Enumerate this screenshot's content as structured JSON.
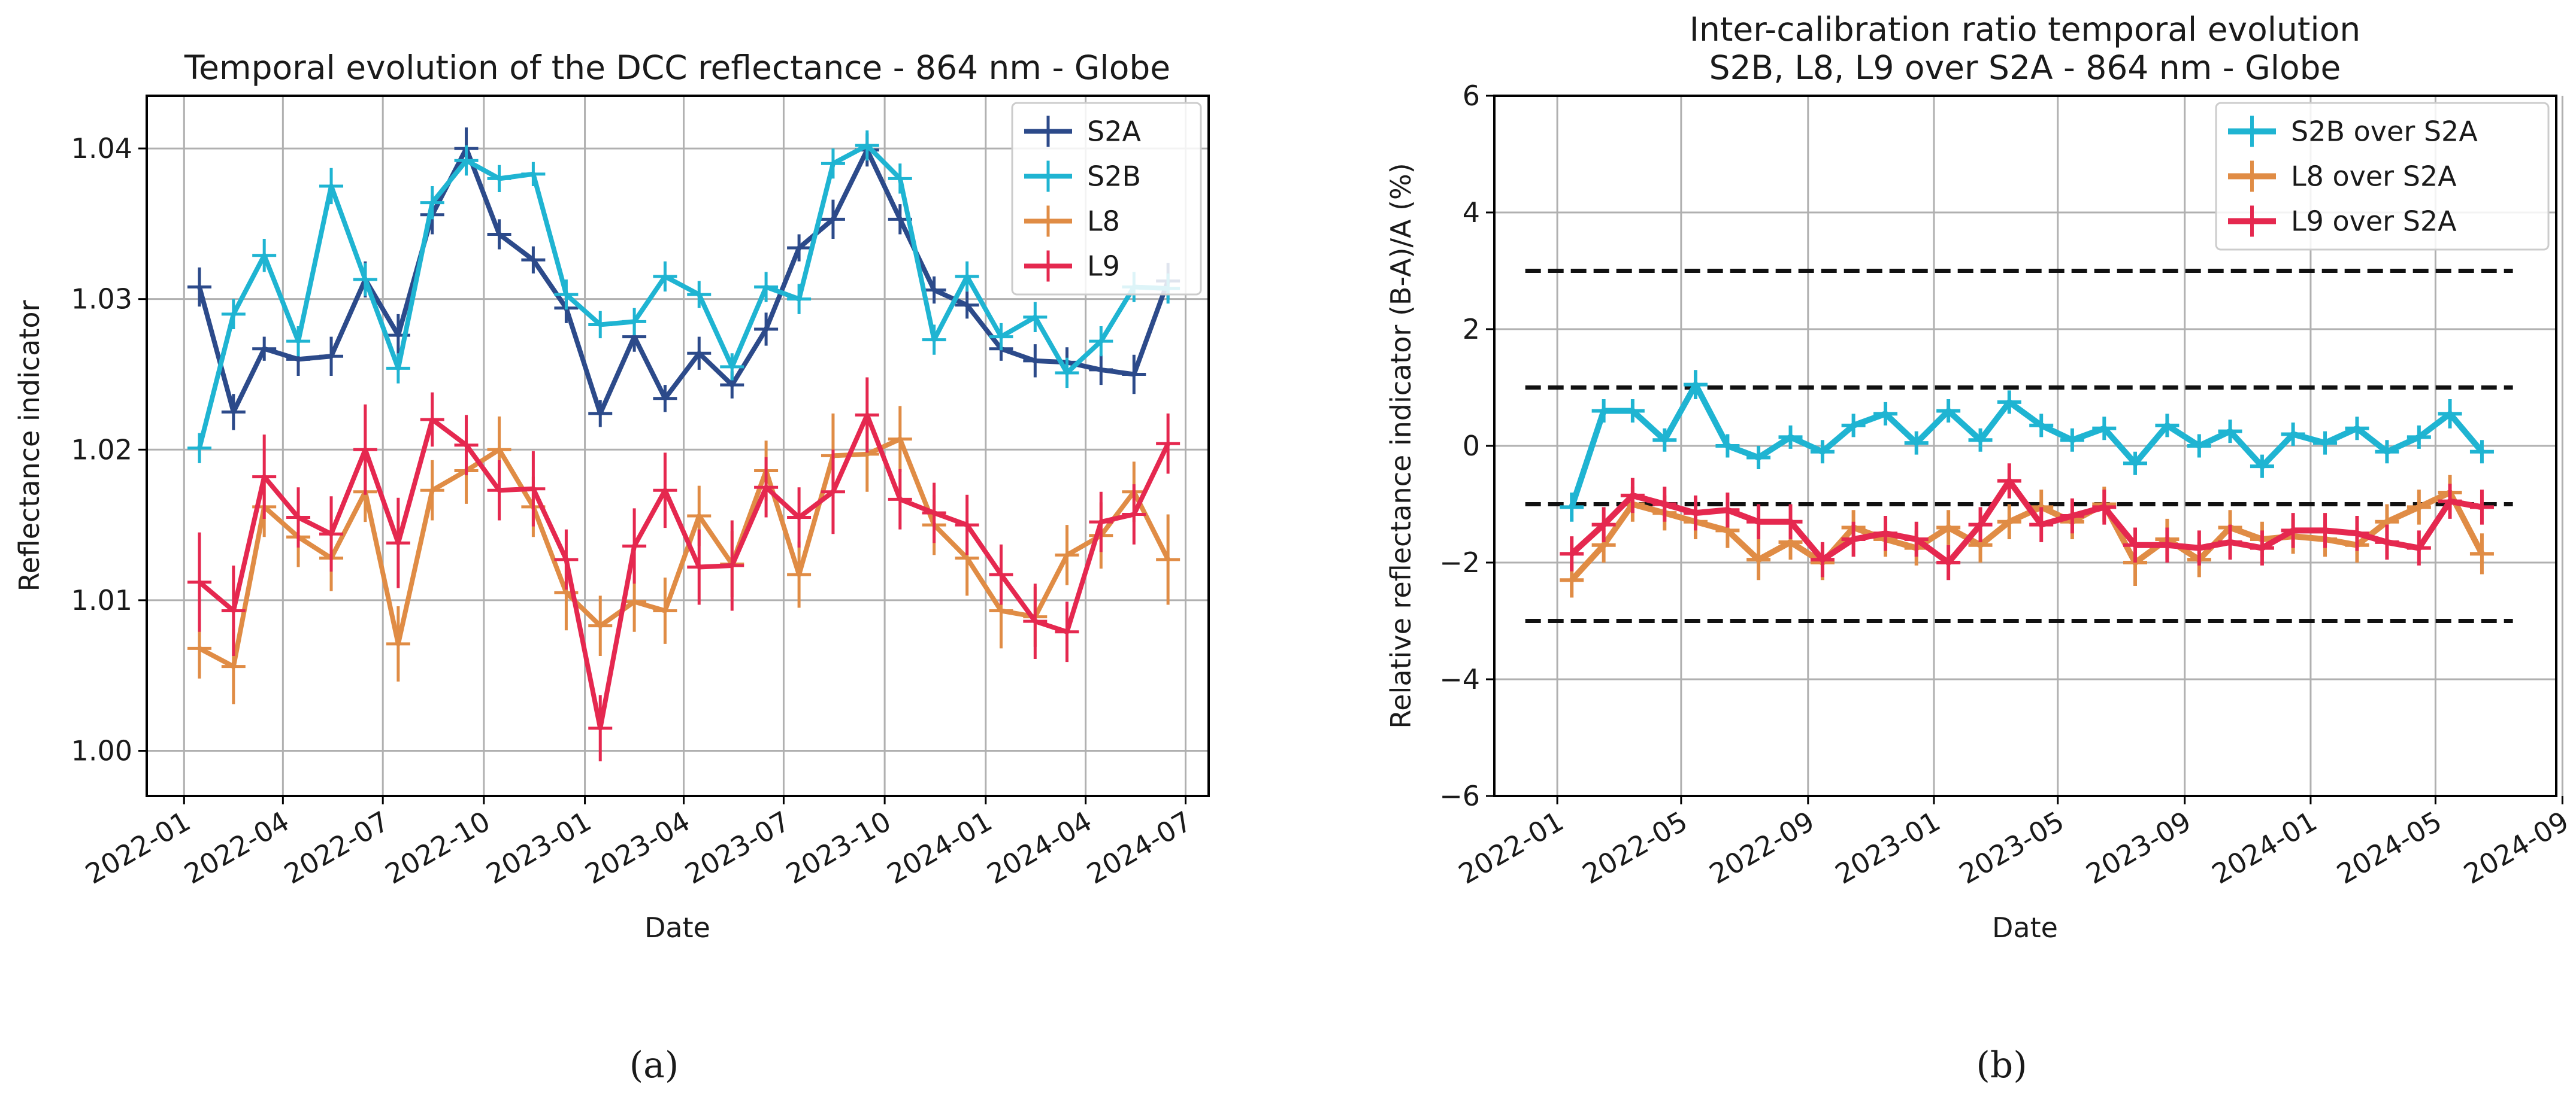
{
  "chart_data": [
    {
      "type": "line",
      "title": "Temporal evolution of the DCC reflectance - 864 nm - Globe",
      "xlabel": "Date",
      "ylabel": "Reflectance indicator",
      "xlim": [
        "2021-11-28",
        "2024-07-22"
      ],
      "ylim": [
        0.997,
        1.0435
      ],
      "xticks": [
        "2022-01",
        "2022-04",
        "2022-07",
        "2022-10",
        "2023-01",
        "2023-04",
        "2023-07",
        "2023-10",
        "2024-01",
        "2024-04",
        "2024-07"
      ],
      "yticks": [
        1.0,
        1.01,
        1.02,
        1.03,
        1.04
      ],
      "ytick_labels": [
        "1.00",
        "1.01",
        "1.02",
        "1.03",
        "1.04"
      ],
      "grid": true,
      "legend_position": "top-right",
      "series": [
        {
          "name": "S2A",
          "color": "#2c4a8a",
          "x": [
            "2022-01",
            "2022-02",
            "2022-03",
            "2022-04",
            "2022-05",
            "2022-06",
            "2022-07",
            "2022-08",
            "2022-09",
            "2022-10",
            "2022-11",
            "2022-12",
            "2023-01",
            "2023-02",
            "2023-03",
            "2023-04",
            "2023-05",
            "2023-06",
            "2023-07",
            "2023-08",
            "2023-09",
            "2023-10",
            "2023-11",
            "2023-12",
            "2024-01",
            "2024-02",
            "2024-03",
            "2024-04",
            "2024-05",
            "2024-06"
          ],
          "values": [
            1.0308,
            1.0225,
            1.0267,
            1.026,
            1.0262,
            1.0313,
            1.0276,
            1.0356,
            1.04,
            1.0343,
            1.0326,
            1.0294,
            1.0224,
            1.0275,
            1.0234,
            1.0264,
            1.0243,
            1.028,
            1.0334,
            1.0353,
            1.0399,
            1.0353,
            1.0306,
            1.0296,
            1.0267,
            1.0259,
            1.0258,
            1.0253,
            1.025,
            1.0312
          ],
          "errors": [
            0.0013,
            0.0012,
            0.0008,
            0.0011,
            0.0013,
            0.0012,
            0.0014,
            0.0013,
            0.0014,
            0.001,
            0.0009,
            0.001,
            0.0009,
            0.001,
            0.0009,
            0.0011,
            0.0009,
            0.0011,
            0.0009,
            0.0013,
            0.0011,
            0.001,
            0.0009,
            0.0009,
            0.0008,
            0.0011,
            0.001,
            0.001,
            0.0013,
            0.0012
          ]
        },
        {
          "name": "S2B",
          "color": "#1fb4d2",
          "x": [
            "2022-01",
            "2022-02",
            "2022-03",
            "2022-04",
            "2022-05",
            "2022-06",
            "2022-07",
            "2022-08",
            "2022-09",
            "2022-10",
            "2022-11",
            "2022-12",
            "2023-01",
            "2023-02",
            "2023-03",
            "2023-04",
            "2023-05",
            "2023-06",
            "2023-07",
            "2023-08",
            "2023-09",
            "2023-10",
            "2023-11",
            "2023-12",
            "2024-01",
            "2024-02",
            "2024-03",
            "2024-04",
            "2024-05",
            "2024-06"
          ],
          "values": [
            1.0201,
            1.029,
            1.0329,
            1.0272,
            1.0375,
            1.0313,
            1.0254,
            1.0364,
            1.0392,
            1.038,
            1.0383,
            1.0303,
            1.0283,
            1.0285,
            1.0315,
            1.0303,
            1.0255,
            1.0308,
            1.03,
            1.039,
            1.0402,
            1.038,
            1.0273,
            1.0315,
            1.0275,
            1.0288,
            1.0251,
            1.0272,
            1.0308,
            1.0307
          ],
          "errors": [
            0.001,
            0.001,
            0.0011,
            0.001,
            0.0012,
            0.0011,
            0.001,
            0.0011,
            0.001,
            0.0009,
            0.0008,
            0.001,
            0.0009,
            0.0009,
            0.001,
            0.0009,
            0.0009,
            0.001,
            0.001,
            0.001,
            0.001,
            0.001,
            0.001,
            0.001,
            0.0009,
            0.001,
            0.001,
            0.001,
            0.001,
            0.001
          ]
        },
        {
          "name": "L8",
          "color": "#e08c45",
          "x": [
            "2022-01",
            "2022-02",
            "2022-03",
            "2022-04",
            "2022-05",
            "2022-06",
            "2022-07",
            "2022-08",
            "2022-09",
            "2022-10",
            "2022-11",
            "2022-12",
            "2023-01",
            "2023-02",
            "2023-03",
            "2023-04",
            "2023-05",
            "2023-06",
            "2023-07",
            "2023-08",
            "2023-09",
            "2023-10",
            "2023-11",
            "2023-12",
            "2024-01",
            "2024-02",
            "2024-03",
            "2024-04",
            "2024-05",
            "2024-06"
          ],
          "values": [
            1.0068,
            1.0056,
            1.0162,
            1.0142,
            1.0128,
            1.0172,
            1.0071,
            1.0173,
            1.0186,
            1.02,
            1.0162,
            1.0105,
            1.0083,
            1.0099,
            1.0093,
            1.0156,
            1.0124,
            1.0186,
            1.0117,
            1.0196,
            1.0197,
            1.0207,
            1.015,
            1.0128,
            1.0093,
            1.0089,
            1.013,
            1.0143,
            1.0172,
            1.0127
          ],
          "errors": [
            0.002,
            0.0025,
            0.002,
            0.002,
            0.0022,
            0.002,
            0.0025,
            0.002,
            0.0022,
            0.0022,
            0.002,
            0.0025,
            0.002,
            0.002,
            0.0022,
            0.002,
            0.0022,
            0.002,
            0.0022,
            0.0028,
            0.0025,
            0.0022,
            0.002,
            0.0025,
            0.0025,
            0.002,
            0.002,
            0.0022,
            0.002,
            0.003
          ]
        },
        {
          "name": "L9",
          "color": "#e5284f",
          "x": [
            "2022-01",
            "2022-02",
            "2022-03",
            "2022-04",
            "2022-05",
            "2022-06",
            "2022-07",
            "2022-08",
            "2022-09",
            "2022-10",
            "2022-11",
            "2022-12",
            "2023-01",
            "2023-02",
            "2023-03",
            "2023-04",
            "2023-05",
            "2023-06",
            "2023-07",
            "2023-08",
            "2023-09",
            "2023-10",
            "2023-11",
            "2023-12",
            "2024-01",
            "2024-02",
            "2024-03",
            "2024-04",
            "2024-05",
            "2024-06"
          ],
          "values": [
            1.0112,
            1.0093,
            1.0182,
            1.0155,
            1.0144,
            1.02,
            1.0138,
            1.022,
            1.0203,
            1.0173,
            1.0174,
            1.0127,
            1.0015,
            1.0136,
            1.0173,
            1.0122,
            1.0123,
            1.0175,
            1.0155,
            1.0172,
            1.0223,
            1.0167,
            1.0158,
            1.015,
            1.0117,
            1.0086,
            1.0079,
            1.0152,
            1.0157,
            1.0204
          ],
          "errors": [
            0.0033,
            0.003,
            0.0028,
            0.002,
            0.0025,
            0.003,
            0.003,
            0.0018,
            0.002,
            0.002,
            0.0025,
            0.002,
            0.0022,
            0.0025,
            0.0025,
            0.0025,
            0.003,
            0.002,
            0.002,
            0.0028,
            0.0025,
            0.002,
            0.002,
            0.002,
            0.002,
            0.0025,
            0.002,
            0.002,
            0.002,
            0.002
          ]
        }
      ],
      "caption": "(a)"
    },
    {
      "type": "line",
      "title": "Inter-calibration ratio temporal evolution\nS2B, L8, L9 over S2A - 864 nm - Globe",
      "xlabel": "Date",
      "ylabel": "Relative reflectance indicator (B-A)/A (%)",
      "xlim": [
        "2021-11-01",
        "2024-08-26"
      ],
      "ylim": [
        -6,
        6
      ],
      "xticks": [
        "2022-01",
        "2022-05",
        "2022-09",
        "2023-01",
        "2023-05",
        "2023-09",
        "2024-01",
        "2024-05",
        "2024-09"
      ],
      "yticks": [
        -6,
        -4,
        -2,
        0,
        2,
        4,
        6
      ],
      "ytick_labels": [
        "−6",
        "−4",
        "−2",
        "0",
        "2",
        "4",
        "6"
      ],
      "grid": true,
      "legend_position": "top-right",
      "reference_lines": [
        3,
        1,
        -1,
        -3
      ],
      "reference_line_xrange": [
        "2021-12-01",
        "2024-07-15"
      ],
      "series": [
        {
          "name": "S2B over S2A",
          "color": "#1fb4d2",
          "x": [
            "2022-01",
            "2022-02",
            "2022-03",
            "2022-04",
            "2022-05",
            "2022-06",
            "2022-07",
            "2022-08",
            "2022-09",
            "2022-10",
            "2022-11",
            "2022-12",
            "2023-01",
            "2023-02",
            "2023-03",
            "2023-04",
            "2023-05",
            "2023-06",
            "2023-07",
            "2023-08",
            "2023-09",
            "2023-10",
            "2023-11",
            "2023-12",
            "2024-01",
            "2024-02",
            "2024-03",
            "2024-04",
            "2024-05",
            "2024-06"
          ],
          "values": [
            -1.05,
            0.6,
            0.6,
            0.1,
            1.05,
            0.0,
            -0.2,
            0.15,
            -0.1,
            0.35,
            0.55,
            0.05,
            0.6,
            0.1,
            0.75,
            0.35,
            0.1,
            0.3,
            -0.3,
            0.35,
            0.0,
            0.25,
            -0.35,
            0.2,
            0.05,
            0.3,
            -0.1,
            0.15,
            0.55,
            -0.1
          ],
          "errors": [
            0.25,
            0.2,
            0.2,
            0.2,
            0.25,
            0.2,
            0.2,
            0.2,
            0.2,
            0.2,
            0.2,
            0.2,
            0.2,
            0.2,
            0.2,
            0.2,
            0.2,
            0.2,
            0.2,
            0.2,
            0.2,
            0.2,
            0.2,
            0.2,
            0.2,
            0.2,
            0.2,
            0.2,
            0.25,
            0.2
          ]
        },
        {
          "name": "L8 over S2A",
          "color": "#e08c45",
          "x": [
            "2022-01",
            "2022-02",
            "2022-03",
            "2022-04",
            "2022-05",
            "2022-06",
            "2022-07",
            "2022-08",
            "2022-09",
            "2022-10",
            "2022-11",
            "2022-12",
            "2023-01",
            "2023-02",
            "2023-03",
            "2023-04",
            "2023-05",
            "2023-06",
            "2023-07",
            "2023-08",
            "2023-09",
            "2023-10",
            "2023-11",
            "2023-12",
            "2024-01",
            "2024-02",
            "2024-03",
            "2024-04",
            "2024-05",
            "2024-06"
          ],
          "values": [
            -2.3,
            -1.7,
            -1.0,
            -1.15,
            -1.3,
            -1.45,
            -1.95,
            -1.65,
            -2.0,
            -1.4,
            -1.6,
            -1.75,
            -1.4,
            -1.7,
            -1.3,
            -1.05,
            -1.3,
            -1.0,
            -2.0,
            -1.6,
            -1.95,
            -1.4,
            -1.6,
            -1.55,
            -1.6,
            -1.7,
            -1.3,
            -1.05,
            -0.8,
            -1.85
          ],
          "errors": [
            0.3,
            0.3,
            0.3,
            0.3,
            0.3,
            0.3,
            0.35,
            0.3,
            0.3,
            0.3,
            0.3,
            0.3,
            0.3,
            0.3,
            0.3,
            0.3,
            0.3,
            0.3,
            0.4,
            0.35,
            0.3,
            0.3,
            0.3,
            0.3,
            0.3,
            0.3,
            0.3,
            0.3,
            0.3,
            0.35
          ]
        },
        {
          "name": "L9 over S2A",
          "color": "#e5284f",
          "x": [
            "2022-01",
            "2022-02",
            "2022-03",
            "2022-04",
            "2022-05",
            "2022-06",
            "2022-07",
            "2022-08",
            "2022-09",
            "2022-10",
            "2022-11",
            "2022-12",
            "2023-01",
            "2023-02",
            "2023-03",
            "2023-04",
            "2023-05",
            "2023-06",
            "2023-07",
            "2023-08",
            "2023-09",
            "2023-10",
            "2023-11",
            "2023-12",
            "2024-01",
            "2024-02",
            "2024-03",
            "2024-04",
            "2024-05",
            "2024-06"
          ],
          "values": [
            -1.85,
            -1.35,
            -0.85,
            -1.0,
            -1.15,
            -1.1,
            -1.3,
            -1.3,
            -1.95,
            -1.6,
            -1.5,
            -1.6,
            -2.0,
            -1.35,
            -0.6,
            -1.35,
            -1.2,
            -1.05,
            -1.7,
            -1.7,
            -1.75,
            -1.65,
            -1.75,
            -1.45,
            -1.45,
            -1.5,
            -1.65,
            -1.75,
            -0.95,
            -1.05
          ],
          "errors": [
            0.3,
            0.3,
            0.3,
            0.3,
            0.3,
            0.3,
            0.3,
            0.3,
            0.3,
            0.3,
            0.3,
            0.3,
            0.3,
            0.3,
            0.3,
            0.3,
            0.3,
            0.3,
            0.3,
            0.3,
            0.3,
            0.3,
            0.3,
            0.3,
            0.3,
            0.3,
            0.3,
            0.3,
            0.3,
            0.3
          ]
        }
      ],
      "caption": "(b)"
    }
  ]
}
